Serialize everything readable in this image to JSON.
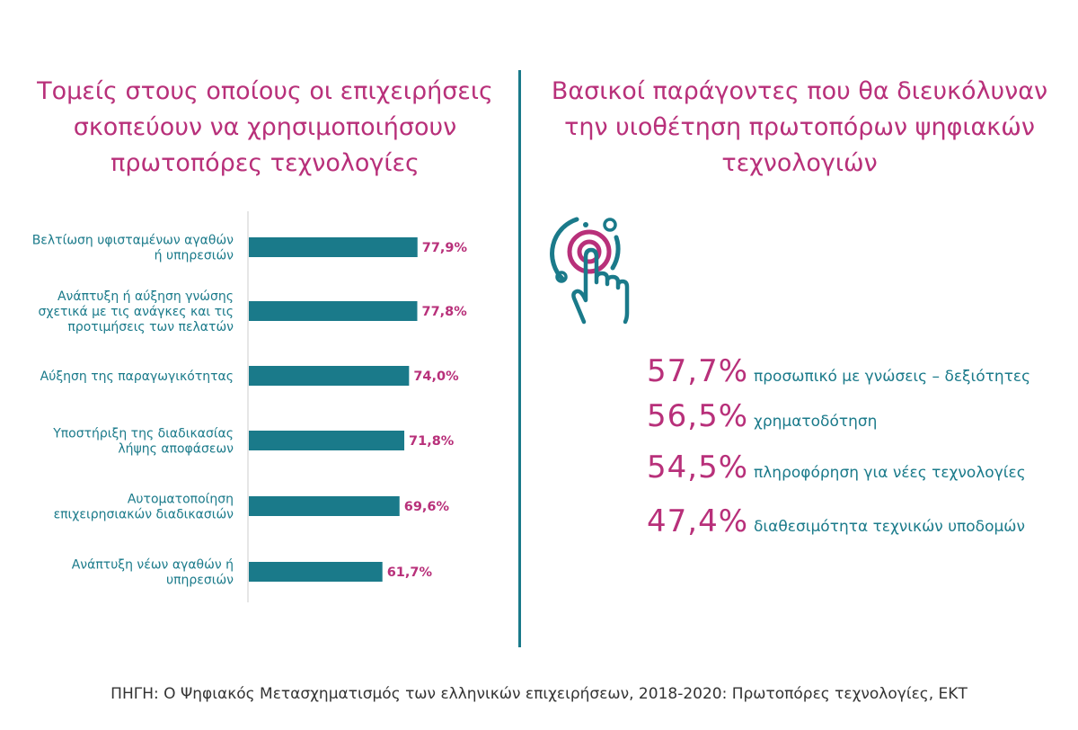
{
  "left_title": "Τομείς στους οποίους οι επιχειρήσεις σκοπεύουν να χρησιμοποιήσουν πρωτοπόρες τεχνολογίες",
  "right_title": "Βασικοί παράγοντες που θα διευκόλυναν την υιοθέτηση πρωτοπόρων ψηφιακών τεχνολογιών",
  "colors": {
    "bar": "#1a7a8a",
    "value_label": "#b8307a",
    "title": "#b8307a",
    "text": "#1a7a8a"
  },
  "chart_data": {
    "type": "bar",
    "orientation": "horizontal",
    "categories": [
      [
        "Βελτίωση υφισταμένων αγαθών",
        "ή υπηρεσιών"
      ],
      [
        "Ανάπτυξη ή αύξηση γνώσης",
        "σχετικά με τις ανάγκες και τις",
        "προτιμήσεις των πελατών"
      ],
      [
        "Αύξηση της παραγωγικότητας"
      ],
      [
        "Υποστήριξη της διαδικασίας",
        "λήψης αποφάσεων"
      ],
      [
        "Αυτοματοποίηση",
        "επιχειρησιακών διαδικασιών"
      ],
      [
        "Ανάπτυξη νέων αγαθών ή",
        "υπηρεσιών"
      ]
    ],
    "values": [
      77.9,
      77.8,
      74.0,
      71.8,
      69.6,
      61.7
    ],
    "value_labels": [
      "77,9%",
      "77,8%",
      "74,0%",
      "71,8%",
      "69,6%",
      "61,7%"
    ],
    "unit": "%",
    "xlim": [
      0,
      100
    ]
  },
  "factors": [
    {
      "value": "57,7%",
      "label": "προσωπικό με γνώσεις – δεξιότητες"
    },
    {
      "value": "56,5%",
      "label": "χρηματοδότηση"
    },
    {
      "value": "54,5%",
      "label": "πληροφόρηση για νέες τεχνολογίες"
    },
    {
      "value": "47,4%",
      "label": "διαθεσιμότητα τεχνικών υποδομών"
    }
  ],
  "icon": "touch-tap-icon",
  "source": "ΠΗΓΗ: Ο Ψηφιακός Μετασχηματισμός των ελληνικών επιχειρήσεων, 2018-2020: Πρωτοπόρες τεχνολογίες, ΕΚΤ"
}
